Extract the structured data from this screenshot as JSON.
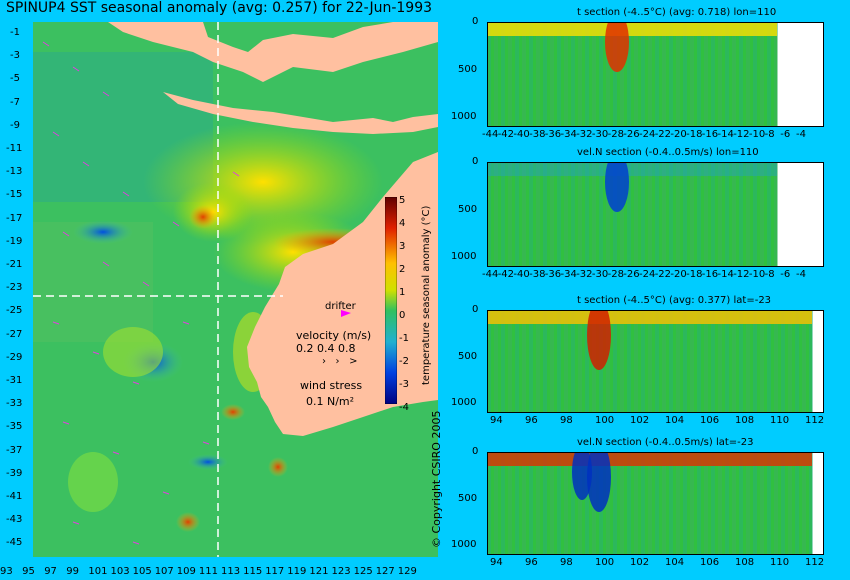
{
  "main_title": "SPINUP4 SST seasonal anomaly (avg: 0.257) for 22-Jun-1993",
  "map": {
    "lat_labels": [
      "-1",
      "-3",
      "-5",
      "-7",
      "-9",
      "-11",
      "-13",
      "-15",
      "-17",
      "-19",
      "-21",
      "-23",
      "-25",
      "-27",
      "-29",
      "-31",
      "-33",
      "-35",
      "-37",
      "-39",
      "-41",
      "-43",
      "-45"
    ],
    "lon_labels": [
      "93",
      "95",
      "97",
      "99",
      "101",
      "103",
      "105",
      "107",
      "109",
      "111",
      "113",
      "115",
      "117",
      "119",
      "121",
      "123",
      "125",
      "127",
      "129"
    ],
    "drifter_label": "drifter",
    "velocity_label": "velocity (m/s)",
    "velocity_scale": "0.2 0.4 0.8",
    "wind_label": "wind stress",
    "wind_scale": "0.1 N/m²",
    "colorbar_label": "temperature seasonal anomaly (°C)",
    "colorbar_ticks": [
      "5",
      "4",
      "3",
      "2",
      "1",
      "0",
      "-1",
      "-2",
      "-3",
      "-4"
    ],
    "copyright": "© Copyright CSIRO 2005"
  },
  "panels": [
    {
      "title": "t section (-4..5°C) (avg: 0.718) lon=110",
      "y_ticks": [
        "0",
        "500",
        "1000"
      ],
      "x_ticks": [
        "-44",
        "-42",
        "-40",
        "-38",
        "-36",
        "-34",
        "-32",
        "-30",
        "-28",
        "-26",
        "-24",
        "-22",
        "-20",
        "-18",
        "-16",
        "-14",
        "-12",
        "-10",
        "-8",
        "-6",
        "-4"
      ]
    },
    {
      "title": "vel.N section (-0.4..0.5m/s) lon=110",
      "y_ticks": [
        "0",
        "500",
        "1000"
      ],
      "x_ticks": [
        "-44",
        "-42",
        "-40",
        "-38",
        "-36",
        "-34",
        "-32",
        "-30",
        "-28",
        "-26",
        "-24",
        "-22",
        "-20",
        "-18",
        "-16",
        "-14",
        "-12",
        "-10",
        "-8",
        "-6",
        "-4"
      ]
    },
    {
      "title": "t section (-4..5°C) (avg: 0.377) lat=-23",
      "y_ticks": [
        "0",
        "500",
        "1000"
      ],
      "x_ticks": [
        "94",
        "96",
        "98",
        "100",
        "102",
        "104",
        "106",
        "108",
        "110",
        "112"
      ]
    },
    {
      "title": "vel.N section (-0.4..0.5m/s) lat=-23",
      "y_ticks": [
        "0",
        "500",
        "1000"
      ],
      "x_ticks": [
        "94",
        "96",
        "98",
        "100",
        "102",
        "104",
        "106",
        "108",
        "110",
        "112"
      ]
    }
  ]
}
